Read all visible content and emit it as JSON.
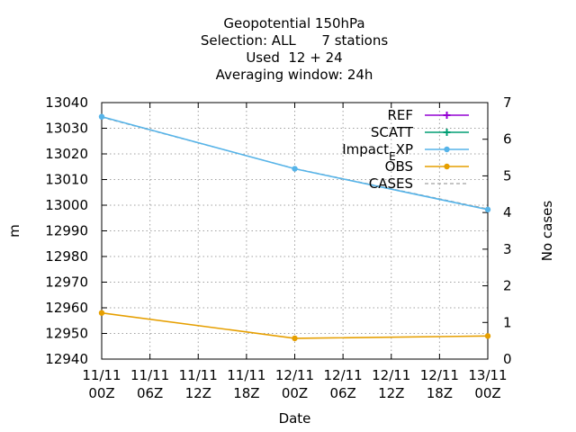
{
  "chart_data": {
    "type": "line",
    "title_lines": [
      "Geopotential 150hPa",
      "Selection: ALL      7 stations",
      "Used  12 + 24",
      "Averaging window: 24h"
    ],
    "xlabel": "Date",
    "ylabel": "m",
    "y2label": "No cases",
    "x_ticks": [
      "11/11\n00Z",
      "11/11\n06Z",
      "11/11\n12Z",
      "11/11\n18Z",
      "12/11\n00Z",
      "12/11\n06Z",
      "12/11\n12Z",
      "12/11\n18Z",
      "13/11\n00Z"
    ],
    "xlim": [
      0,
      48
    ],
    "ylim": [
      12940,
      13040
    ],
    "y_ticks": [
      12940,
      12950,
      12960,
      12970,
      12980,
      12990,
      13000,
      13010,
      13020,
      13030,
      13040
    ],
    "y2lim": [
      0,
      7
    ],
    "y2_ticks": [
      0,
      1,
      2,
      3,
      4,
      5,
      6,
      7
    ],
    "grid": true,
    "legend_position": "top-right",
    "series": [
      {
        "name": "REF",
        "color": "#9400d3",
        "axis": "y",
        "marker": "plus",
        "points": []
      },
      {
        "name": "SCATT",
        "color": "#009e73",
        "axis": "y",
        "marker": "plus",
        "points": []
      },
      {
        "name": "Impact_EXP",
        "color": "#56b4e9",
        "axis": "y",
        "marker": "circle",
        "points": [
          [
            0,
            13034.5
          ],
          [
            24,
            13014.2
          ],
          [
            48,
            12998.3
          ]
        ]
      },
      {
        "name": "OBS",
        "color": "#e69f00",
        "axis": "y",
        "marker": "circle",
        "points": [
          [
            0,
            12958.0
          ],
          [
            24,
            12948.1
          ],
          [
            48,
            12949.0
          ]
        ]
      },
      {
        "name": "CASES",
        "color": "#a0a0a0",
        "axis": "y2",
        "dashed": true,
        "points": [
          [
            0,
            6.6
          ],
          [
            24,
            5.2
          ],
          [
            48,
            4.1
          ]
        ]
      }
    ]
  }
}
